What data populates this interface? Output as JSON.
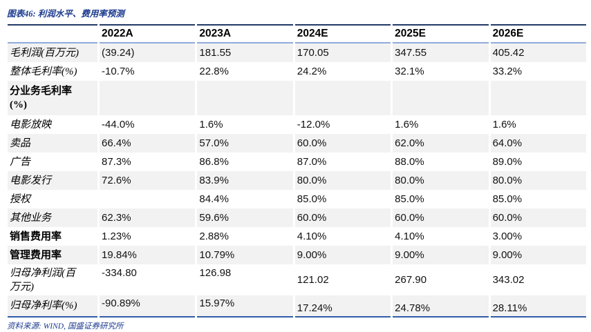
{
  "title": "图表46: 利润水平、费用率预测",
  "source": "资料来源: WIND, 国盛证券研究所",
  "colors": {
    "title_blue": "#1b3a8f",
    "table_top_border": "#1f3864",
    "header_underline": "#8faadc",
    "table_bottom_border": "#2f5da8",
    "stripe_gray": "#f2f2f2"
  },
  "table": {
    "columns": [
      "2022A",
      "2023A",
      "2024E",
      "2025E",
      "2026E"
    ],
    "rows": [
      {
        "label": "毛利润(百万元)",
        "values": [
          "(39.24)",
          "181.55",
          "170.05",
          "347.55",
          "405.42"
        ]
      },
      {
        "label": "整体毛利率(%)",
        "values": [
          "-10.7%",
          "22.8%",
          "24.2%",
          "32.1%",
          "33.2%"
        ]
      },
      {
        "label": "分业务毛利率",
        "label2": "(%)",
        "values": [
          "",
          "",
          "",
          "",
          ""
        ]
      },
      {
        "label": "电影放映",
        "values": [
          "-44.0%",
          "1.6%",
          "-12.0%",
          "1.6%",
          "1.6%"
        ]
      },
      {
        "label": "卖品",
        "values": [
          "66.4%",
          "57.0%",
          "60.0%",
          "62.0%",
          "64.0%"
        ]
      },
      {
        "label": "广告",
        "values": [
          "87.3%",
          "86.8%",
          "87.0%",
          "88.0%",
          "89.0%"
        ]
      },
      {
        "label": "电影发行",
        "values": [
          "72.6%",
          "83.9%",
          "80.0%",
          "80.0%",
          "80.0%"
        ]
      },
      {
        "label": "授权",
        "values": [
          "",
          "84.4%",
          "85.0%",
          "85.0%",
          "85.0%"
        ]
      },
      {
        "label": "其他业务",
        "values": [
          "62.3%",
          "59.6%",
          "60.0%",
          "60.0%",
          "60.0%"
        ]
      },
      {
        "label": "销售费用率",
        "values": [
          "1.23%",
          "2.88%",
          "4.10%",
          "4.10%",
          "3.00%"
        ]
      },
      {
        "label": "管理费用率",
        "values": [
          "19.84%",
          "10.79%",
          "9.00%",
          "9.00%",
          "9.00%"
        ]
      },
      {
        "label": "归母净利润(百",
        "label2": "万元)",
        "values": [
          "-334.80",
          "126.98",
          "121.02",
          "267.90",
          "343.02"
        ]
      },
      {
        "label": "归母净利率(%)",
        "values": [
          "-90.89%",
          "15.97%",
          "17.24%",
          "24.78%",
          "28.11%"
        ]
      }
    ]
  }
}
